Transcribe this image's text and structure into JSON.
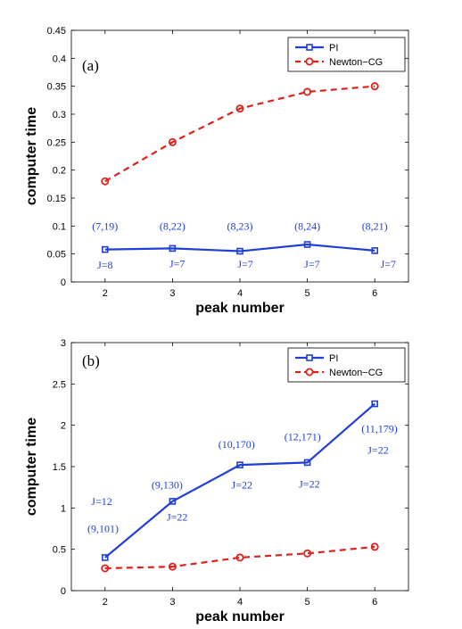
{
  "chart_data": [
    {
      "type": "line",
      "panel_label": "(a)",
      "xlabel": "peak number",
      "ylabel": "computer time",
      "x": [
        2,
        3,
        4,
        5,
        6
      ],
      "xlim": [
        1.5,
        6.5
      ],
      "ylim": [
        0,
        0.45
      ],
      "x_ticks": [
        2,
        3,
        4,
        5,
        6
      ],
      "y_ticks": [
        0,
        0.05,
        0.1,
        0.15,
        0.2,
        0.25,
        0.3,
        0.35,
        0.4,
        0.45
      ],
      "y_tick_labels": [
        "0",
        "0.05",
        "0.1",
        "0.15",
        "0.2",
        "0.25",
        "0.3",
        "0.35",
        "0.4",
        "0.45"
      ],
      "grid": false,
      "legend_position": "top-right",
      "series": [
        {
          "name": "PI",
          "values": [
            0.058,
            0.06,
            0.055,
            0.067,
            0.056
          ],
          "color": "#1f3fd6",
          "line_style": "solid",
          "marker": "square"
        },
        {
          "name": "Newton−CG",
          "values": [
            0.18,
            0.25,
            0.31,
            0.34,
            0.35
          ],
          "color": "#e0201b",
          "line_style": "dashed",
          "marker": "circle"
        }
      ],
      "annotations": [
        {
          "text": "(7,19)",
          "x": 2,
          "y": 0.1
        },
        {
          "text": "(8,22)",
          "x": 3,
          "y": 0.1
        },
        {
          "text": "(8,23)",
          "x": 4,
          "y": 0.1
        },
        {
          "text": "(8,24)",
          "x": 5,
          "y": 0.1
        },
        {
          "text": "(8,21)",
          "x": 6,
          "y": 0.1
        },
        {
          "text": "J=8",
          "x": 2,
          "y": 0.03
        },
        {
          "text": "J=7",
          "x": 3.07,
          "y": 0.033
        },
        {
          "text": "J=7",
          "x": 4.08,
          "y": 0.032
        },
        {
          "text": "J=7",
          "x": 5.07,
          "y": 0.032
        },
        {
          "text": "J=7",
          "x": 6.2,
          "y": 0.032
        }
      ]
    },
    {
      "type": "line",
      "panel_label": "(b)",
      "xlabel": "peak number",
      "ylabel": "computer time",
      "x": [
        2,
        3,
        4,
        5,
        6
      ],
      "xlim": [
        1.5,
        6.5
      ],
      "ylim": [
        0,
        3
      ],
      "x_ticks": [
        2,
        3,
        4,
        5,
        6
      ],
      "y_ticks": [
        0,
        0.5,
        1,
        1.5,
        2,
        2.5,
        3
      ],
      "y_tick_labels": [
        "0",
        "0.5",
        "1",
        "1.5",
        "2",
        "2.5",
        "3"
      ],
      "grid": false,
      "legend_position": "top-right",
      "series": [
        {
          "name": "PI",
          "values": [
            0.4,
            1.08,
            1.52,
            1.55,
            2.26
          ],
          "color": "#1f3fd6",
          "line_style": "solid",
          "marker": "square"
        },
        {
          "name": "Newton−CG",
          "values": [
            0.27,
            0.29,
            0.4,
            0.45,
            0.53
          ],
          "color": "#e0201b",
          "line_style": "dashed",
          "marker": "circle"
        }
      ],
      "annotations": [
        {
          "text": "J=12",
          "x": 1.95,
          "y": 1.08
        },
        {
          "text": "(9,101)",
          "x": 1.97,
          "y": 0.75
        },
        {
          "text": "(9,130)",
          "x": 2.92,
          "y": 1.28
        },
        {
          "text": "J=22",
          "x": 3.07,
          "y": 0.89
        },
        {
          "text": "(10,170)",
          "x": 3.95,
          "y": 1.77
        },
        {
          "text": "J=22",
          "x": 4.03,
          "y": 1.28
        },
        {
          "text": "(12,171)",
          "x": 4.93,
          "y": 1.86
        },
        {
          "text": "J=22",
          "x": 5.03,
          "y": 1.29
        },
        {
          "text": "(11,179)",
          "x": 6.07,
          "y": 1.96
        },
        {
          "text": "J=22",
          "x": 6.05,
          "y": 1.7
        }
      ]
    }
  ]
}
